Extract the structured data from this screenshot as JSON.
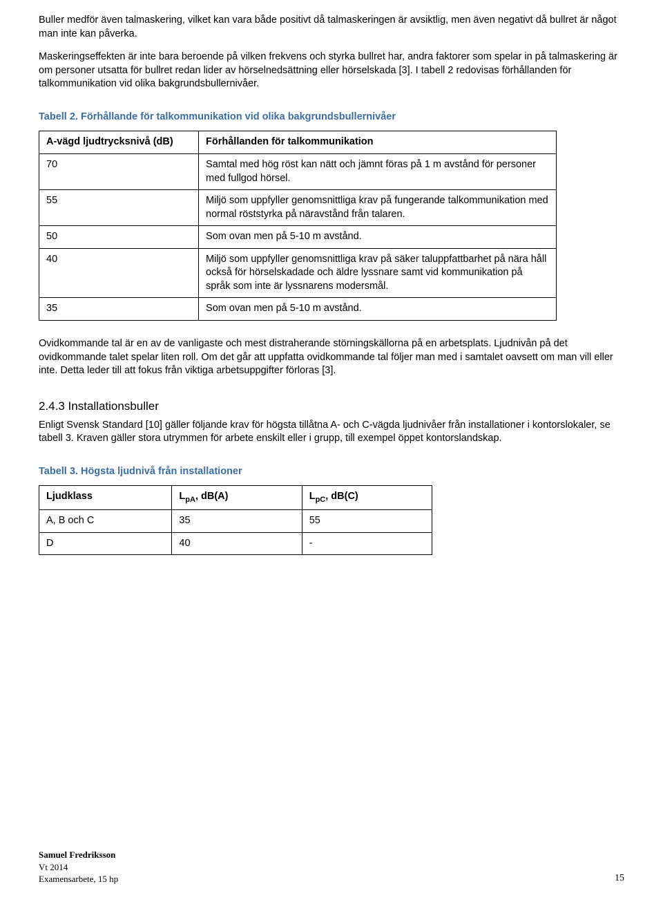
{
  "intro": {
    "p1": "Buller medför även talmaskering, vilket kan vara både positivt då talmaskeringen är avsiktlig, men även negativt då bullret är något man inte kan påverka.",
    "p2": "Maskeringseffekten är inte bara beroende på vilken frekvens och styrka bullret har, andra faktorer som spelar in på talmaskering är om personer utsatta för bullret redan lider av hörselnedsättning eller hörselskada [3]. I tabell 2 redovisas förhållanden för talkommunikation vid olika bakgrundsbullernivåer."
  },
  "table1": {
    "caption": "Tabell 2. Förhållande för talkommunikation vid olika bakgrundsbullernivåer",
    "header": {
      "col_a": "A-vägd ljudtrycksnivå (dB)",
      "col_b": "Förhållanden för talkommunikation"
    },
    "rows": [
      {
        "a": "70",
        "b": "Samtal med hög röst kan nätt och jämnt föras på 1 m avstånd för personer med fullgod hörsel."
      },
      {
        "a": "55",
        "b": "Miljö som uppfyller genomsnittliga krav på fungerande talkommunikation med normal röststyrka på näravstånd från talaren."
      },
      {
        "a": "50",
        "b": "Som ovan men på 5-10 m avstånd."
      },
      {
        "a": "40",
        "b": "Miljö som uppfyller genomsnittliga krav på säker taluppfattbarhet på nära håll också för hörselskadade och äldre lyssnare samt vid kommunikation på språk som inte är lyssnarens modersmål."
      },
      {
        "a": "35",
        "b": "Som ovan men på 5-10 m avstånd."
      }
    ]
  },
  "mid": {
    "p": "Ovidkommande tal är en av de vanligaste och mest distraherande störningskällorna på en arbetsplats. Ljudnivån på det ovidkommande talet spelar liten roll. Om det går att uppfatta ovidkommande tal följer man med i samtalet oavsett om man vill eller inte. Detta leder till att fokus från viktiga arbetsuppgifter förloras [3]."
  },
  "section": {
    "num": "2.4.3",
    "title": "Installationsbuller",
    "p": "Enligt Svensk Standard [10] gäller följande krav för högsta tillåtna A- och C-vägda ljudnivåer från installationer i kontorslokaler, se tabell 3. Kraven gäller stora utrymmen för arbete enskilt eller i grupp, till exempel öppet kontorslandskap."
  },
  "table2": {
    "caption": "Tabell 3. Högsta ljudnivå från installationer",
    "header": {
      "c1": "Ljudklass",
      "c2_pre": "L",
      "c2_sub": "pA",
      "c2_post": ", dB(A)",
      "c3_pre": "L",
      "c3_sub": "pC",
      "c3_post": ", dB(C)"
    },
    "rows": [
      {
        "c1": "A, B och C",
        "c2": "35",
        "c3": "55"
      },
      {
        "c1": "D",
        "c2": "40",
        "c3": "-"
      }
    ]
  },
  "footer": {
    "name": "Samuel Fredriksson",
    "line2": "Vt 2014",
    "line3": "Examensarbete, 15 hp",
    "pagenum": "15"
  }
}
